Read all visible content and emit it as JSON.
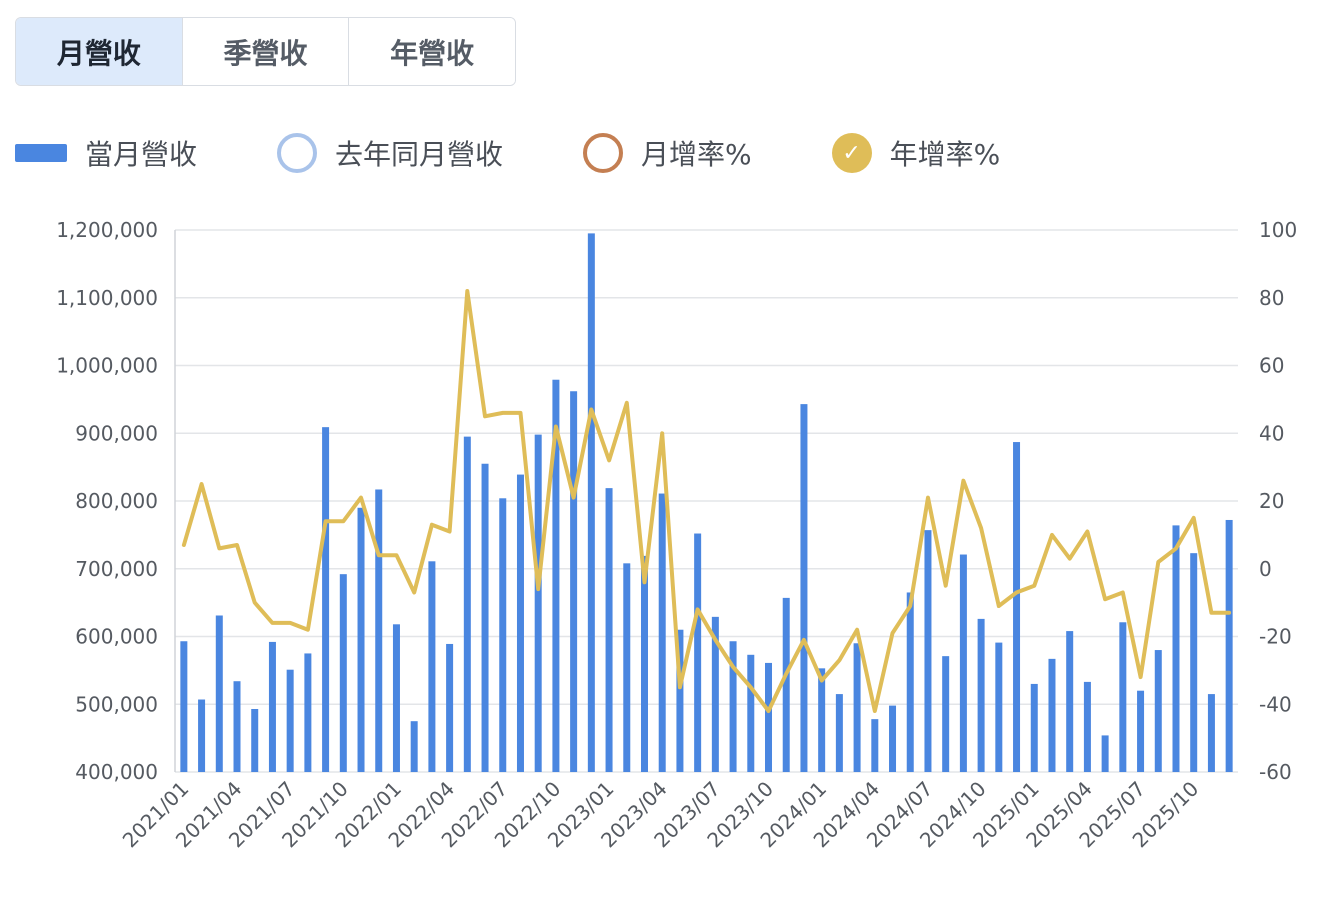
{
  "tabs": [
    {
      "label": "月營收",
      "active": true
    },
    {
      "label": "季營收",
      "active": false
    },
    {
      "label": "年營收",
      "active": false
    }
  ],
  "legend": [
    {
      "label": "當月營收",
      "marker": "bar",
      "color": "#4a86e0"
    },
    {
      "label": "去年同月營收",
      "marker": "circle",
      "color": "#a9c3ea"
    },
    {
      "label": "月增率%",
      "marker": "circle",
      "color": "#c47f52"
    },
    {
      "label": "年增率%",
      "marker": "check",
      "color": "#dfbd58"
    }
  ],
  "chart_data": {
    "type": "bar",
    "x_labels": [
      "2021/01",
      "2021/04",
      "2021/07",
      "2021/10",
      "2022/01",
      "2022/04",
      "2022/07",
      "2022/10",
      "2023/01",
      "2023/04",
      "2023/07",
      "2023/10",
      "2024/01",
      "2024/04",
      "2024/07",
      "2024/10",
      "2025/01",
      "2025/04",
      "2025/07",
      "2025/10"
    ],
    "months": [
      "2021/01",
      "2021/02",
      "2021/03",
      "2021/04",
      "2021/05",
      "2021/06",
      "2021/07",
      "2021/08",
      "2021/09",
      "2021/10",
      "2021/11",
      "2021/12",
      "2022/01",
      "2022/02",
      "2022/03",
      "2022/04",
      "2022/05",
      "2022/06",
      "2022/07",
      "2022/08",
      "2022/09",
      "2022/10",
      "2022/11",
      "2022/12",
      "2023/01",
      "2023/02",
      "2023/03",
      "2023/04",
      "2023/05",
      "2023/06",
      "2023/07",
      "2023/08",
      "2023/09",
      "2023/10",
      "2023/11",
      "2023/12",
      "2024/01",
      "2024/02",
      "2024/03",
      "2024/04",
      "2024/05",
      "2024/06",
      "2024/07",
      "2024/08",
      "2024/09",
      "2024/10",
      "2024/11",
      "2024/12",
      "2025/01",
      "2025/02",
      "2025/03",
      "2025/04",
      "2025/05",
      "2025/06",
      "2025/07",
      "2025/08",
      "2025/09",
      "2025/10",
      "2025/11",
      "2025/12"
    ],
    "series": [
      {
        "name": "當月營收",
        "type": "bar",
        "axis": "left",
        "color": "#4a86e0",
        "values": [
          593000,
          507000,
          631000,
          534000,
          493000,
          592000,
          551000,
          575000,
          909000,
          692000,
          790000,
          817000,
          618000,
          475000,
          711000,
          589000,
          895000,
          855000,
          804000,
          839000,
          898000,
          979000,
          962000,
          1195000,
          819000,
          708000,
          719000,
          811000,
          610000,
          752000,
          629000,
          593000,
          573000,
          561000,
          657000,
          943000,
          553000,
          515000,
          590000,
          478000,
          498000,
          665000,
          757000,
          571000,
          721000,
          626000,
          591000,
          887000,
          530000,
          567000,
          608000,
          533000,
          454000,
          621000,
          520000,
          580000,
          764000,
          723000,
          515000,
          772000
        ]
      },
      {
        "name": "年增率%",
        "type": "line",
        "axis": "right",
        "color": "#dfbd58",
        "values": [
          7,
          25,
          6,
          7,
          -10,
          -16,
          -16,
          -18,
          14,
          14,
          21,
          4,
          4,
          -7,
          13,
          11,
          82,
          45,
          46,
          46,
          -6,
          42,
          21,
          47,
          32,
          49,
          -4,
          40,
          -35,
          -12,
          -21,
          -29,
          -35,
          -42,
          -31,
          -21,
          -33,
          -27,
          -18,
          -42,
          -19,
          -11,
          21,
          -5,
          26,
          12,
          -11,
          -7,
          -5,
          10,
          3,
          11,
          -9,
          -7,
          -32,
          2,
          6,
          15,
          -13,
          -13
        ]
      }
    ],
    "y_left": {
      "min": 400000,
      "max": 1200000,
      "ticks": [
        "400,000",
        "500,000",
        "600,000",
        "700,000",
        "800,000",
        "900,000",
        "1,000,000",
        "1,100,000",
        "1,200,000"
      ]
    },
    "y_right": {
      "min": -60,
      "max": 100,
      "ticks": [
        "-60",
        "-40",
        "-20",
        "0",
        "20",
        "40",
        "60",
        "80",
        "100"
      ]
    },
    "grid": true
  }
}
